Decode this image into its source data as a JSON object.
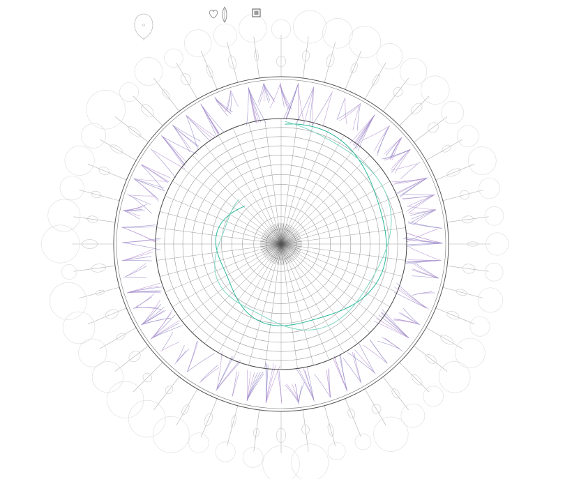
{
  "toolbar": {
    "buttons": [
      {
        "icon": "heart-outline-icon"
      },
      {
        "icon": "leaf-outline-icon"
      },
      {
        "icon": "grid-square-icon"
      }
    ]
  },
  "legend": {
    "icon": "seed-outline-icon"
  },
  "colors": {
    "ink": "#3a3a3a",
    "grid": "#9a9a9a",
    "faint": "#c8c8c8",
    "purple": "#8f86c6",
    "violet": "#b58fd0",
    "teal": "#2ab89a",
    "tealLight": "#7fd6c2"
  },
  "rings": {
    "count": 12,
    "spokes": 48
  },
  "petals": {
    "count": 48
  },
  "bristles": {
    "count": 60
  }
}
